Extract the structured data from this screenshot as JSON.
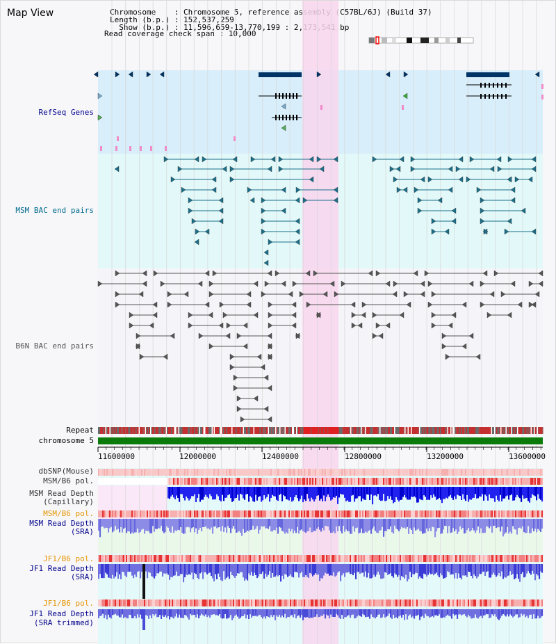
{
  "view_title": "Map View",
  "info": {
    "line1": "Chromosome    : Chromosome 5, reference assembly (C57BL/6J) (Build 37)",
    "line2": "Length (b.p.) : 152,537,259",
    "line3": "  Show (b.p.) : 11,596,659-13,770,199 : 2,173,541 bp",
    "line4": "Read coverage check span : 10,000"
  },
  "tracks": {
    "refseq": "RefSeq Genes",
    "msm_bac": "MSM BAC end pairs",
    "b6n_bac": "B6N BAC end pairs",
    "repeat": "Repeat",
    "chromosome": "chromosome 5",
    "dbsnp": "dbSNP(Mouse)",
    "msm_b6_pol_1": "MSM/B6 pol.",
    "msm_cap_1": "MSM Read Depth",
    "msm_cap_2": "(Capillary)",
    "msm_b6_pol_2": "MSM/B6 pol.",
    "msm_sra_1": "MSM Read Depth",
    "msm_sra_2": "(SRA)",
    "jf1_b6_pol_1": "JF1/B6 pol.",
    "jf1_sra_1": "JF1 Read Depth",
    "jf1_sra_2": "(SRA)",
    "jf1_b6_pol_2": "JF1/B6 pol.",
    "jf1_trim_1": "JF1 Read Depth",
    "jf1_trim_2": "(SRA trimmed)"
  },
  "axis_ticks": [
    "11600000",
    "12000000",
    "12400000",
    "12800000",
    "13200000",
    "13600000"
  ],
  "colors": {
    "refseq_label": "#00008b",
    "msm_label": "#006b8e",
    "b6n_label": "#555555",
    "pol_label_orange": "#e69500",
    "read_depth_label": "#00008b",
    "highlight": "#f9d6ef",
    "chromosome_bar": "#0a7a0a",
    "gene_fill": "#003366"
  }
}
